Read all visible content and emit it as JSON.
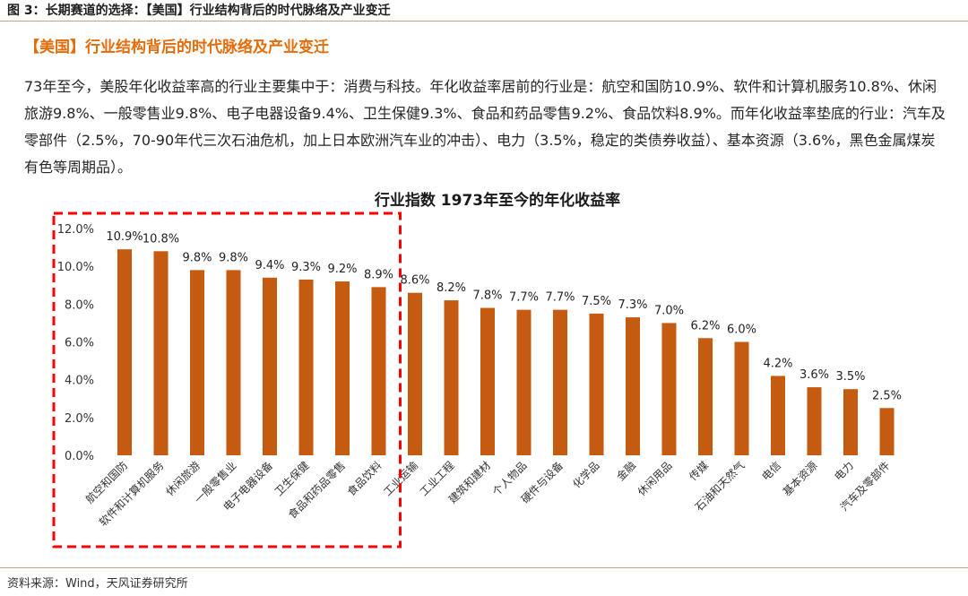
{
  "figure_caption": "图 3：长期赛道的选择：【美国】行业结构背后的时代脉络及产业变迁",
  "section_title": "【美国】行业结构背后的时代脉络及产业变迁",
  "body_text": "73年至今，美股年化收益率高的行业主要集中于：消费与科技。年化收益率居前的行业是：航空和国防10.9%、软件和计算机服务10.8%、休闲旅游9.8%、一般零售业9.8%、电子电器设备9.4%、卫生保健9.3%、食品和药品零售9.2%、食品饮料8.9%。而年化收益率垫底的行业：汽车及零部件（2.5%，70-90年代三次石油危机，加上日本欧洲汽车业的冲击）、电力（3.5%，稳定的类债券收益）、基本资源（3.6%，黑色金属煤炭有色等周期品）。",
  "source_note": "资料来源：Wind，天风证券研究所",
  "colors": {
    "bar": "#c55a11",
    "accent": "#e46c0a",
    "highlight_box": "#ff0000",
    "rule": "#c8a27a"
  },
  "chart_data": {
    "type": "bar",
    "title": "行业指数 1973年至今的年化收益率",
    "xlabel": "",
    "ylabel": "",
    "ylim": [
      0,
      12
    ],
    "yticks": [
      "0.0%",
      "2.0%",
      "4.0%",
      "6.0%",
      "8.0%",
      "10.0%",
      "12.0%"
    ],
    "ytick_values": [
      0,
      2,
      4,
      6,
      8,
      10,
      12
    ],
    "categories": [
      "航空和国防",
      "软件和计算机服务",
      "休闲旅游",
      "一般零售业",
      "电子电器设备",
      "卫生保健",
      "食品和药品零售",
      "食品饮料",
      "工业运输",
      "工业工程",
      "建筑和建材",
      "个人物品",
      "硬件与设备",
      "化学品",
      "金融",
      "休闲用品",
      "传媒",
      "石油和天然气",
      "电信",
      "基本资源",
      "电力",
      "汽车及零部件"
    ],
    "values": [
      10.9,
      10.8,
      9.8,
      9.8,
      9.4,
      9.3,
      9.2,
      8.9,
      8.6,
      8.2,
      7.8,
      7.7,
      7.7,
      7.5,
      7.3,
      7.0,
      6.2,
      6.0,
      4.2,
      3.6,
      3.5,
      2.5
    ],
    "labels": [
      "10.9%",
      "10.8%",
      "9.8%",
      "9.8%",
      "9.4%",
      "9.3%",
      "9.2%",
      "8.9%",
      "8.6%",
      "8.2%",
      "7.8%",
      "7.7%",
      "7.7%",
      "7.5%",
      "7.3%",
      "7.0%",
      "6.2%",
      "6.0%",
      "4.2%",
      "3.6%",
      "3.5%",
      "2.5%"
    ],
    "highlight_count": 8
  }
}
